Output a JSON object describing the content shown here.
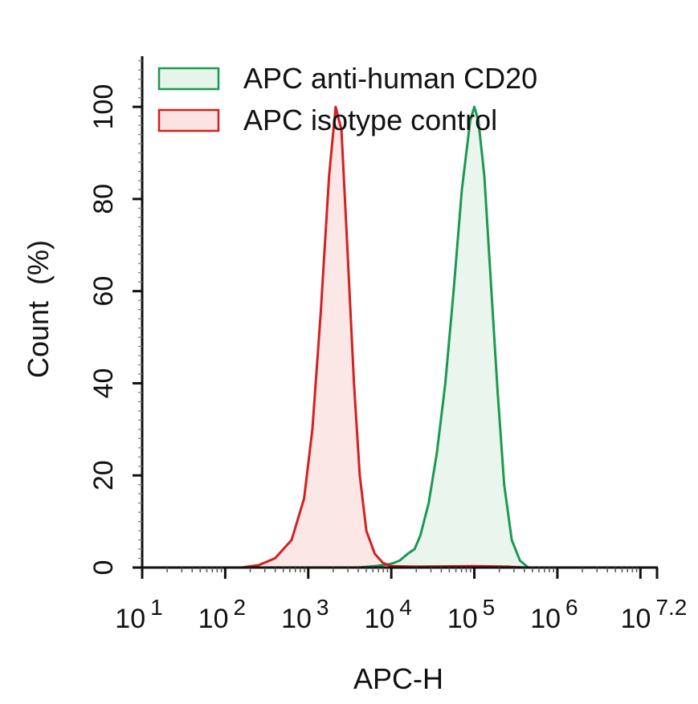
{
  "chart_data": {
    "type": "area",
    "title": "",
    "xlabel": "APC-H",
    "ylabel": "Count  (%)",
    "x_scale": "log",
    "xlim": [
      10.0,
      15850000.0
    ],
    "ylim": [
      0,
      111
    ],
    "x_ticks": [
      {
        "base": "10",
        "exp": "1"
      },
      {
        "base": "10",
        "exp": "2"
      },
      {
        "base": "10",
        "exp": "3"
      },
      {
        "base": "10",
        "exp": "4"
      },
      {
        "base": "10",
        "exp": "5"
      },
      {
        "base": "10",
        "exp": "6"
      },
      {
        "base": "10",
        "exp": "7.2"
      }
    ],
    "y_ticks": [
      "0",
      "20",
      "40",
      "60",
      "80",
      "100"
    ],
    "grid": false,
    "legend_position": "top",
    "series": [
      {
        "name": "APC anti-human CD20",
        "color": "#1a9a50",
        "fill": "#e6f5ea",
        "x": [
          3980.0,
          6310.0,
          10000.0,
          12600.0,
          15800.0,
          19100.0,
          22400.0,
          28200.0,
          35500.0,
          44700.0,
          56200.0,
          70800.0,
          89100.0,
          100000.0,
          112000.0,
          132000.0,
          158000.0,
          191000.0,
          229000.0,
          282000.0,
          355000.0,
          447000.0
        ],
        "y": [
          0,
          0.3,
          0.8,
          1.5,
          3,
          4,
          7,
          14,
          25,
          40,
          60,
          82,
          97,
          100,
          97,
          85,
          62,
          38,
          18,
          6,
          1.5,
          0
        ]
      },
      {
        "name": "APC isotype control",
        "color": "#d42020",
        "fill": "#fbe3e3",
        "x": [
          158.0,
          251.0,
          398.0,
          631.0,
          891.0,
          1120.0,
          1410.0,
          1780.0,
          2140.0,
          2510.0,
          2950.0,
          3550.0,
          4170.0,
          5010.0,
          6310.0,
          7940.0,
          10000.0,
          20000.0,
          100000.0,
          251000.0,
          398000.0
        ],
        "y": [
          0,
          0.5,
          2,
          6,
          15,
          30,
          55,
          85,
          100,
          95,
          70,
          40,
          20,
          8,
          3,
          1,
          0.3,
          0.2,
          0.3,
          0.2,
          0
        ]
      }
    ]
  }
}
